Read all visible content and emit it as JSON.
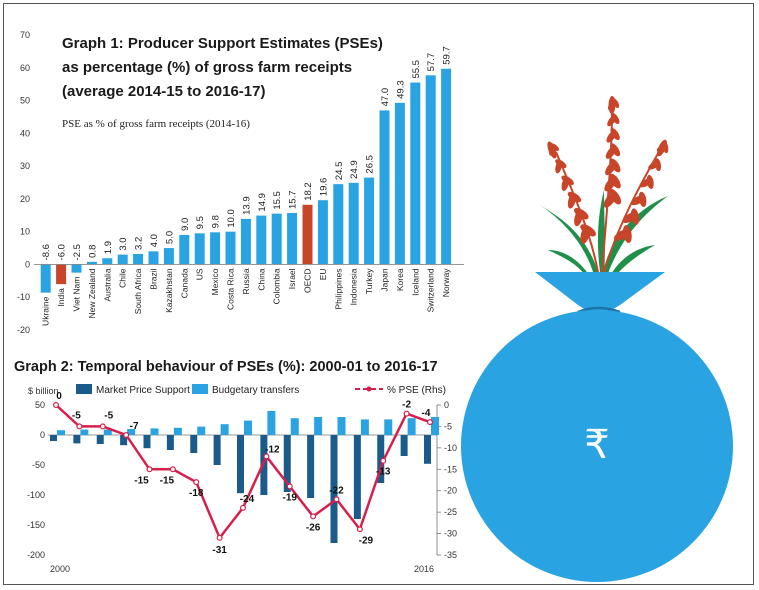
{
  "colors": {
    "light_blue": "#2aa3e2",
    "dark_blue": "#1b5b8c",
    "highlight_red": "#c8452a",
    "pse_line": "#d6204b",
    "bag_blue": "#2aa3e2",
    "wheat": "#c8452a",
    "leaf": "#1f8f4a"
  },
  "chart_data": [
    {
      "type": "bar",
      "title_lines": [
        "Graph 1: Producer Support Estimates (PSEs)",
        "as percentage (%) of gross farm receipts",
        "(average 2014-15 to 2016-17)"
      ],
      "subtitle": "PSE as % of gross farm receipts (2014-16)",
      "categories": [
        "Ukraine",
        "India",
        "Viet Nam",
        "New Zealand",
        "Australia",
        "Chile",
        "South Africa",
        "Brazil",
        "Kazakhstan",
        "Canada",
        "US",
        "Mexico",
        "Costa Rica",
        "Russia",
        "China",
        "Colombia",
        "Israel",
        "OECD",
        "EU",
        "Philippines",
        "Indonesia",
        "Turkey",
        "Japan",
        "Korea",
        "Iceland",
        "Switzerland",
        "Norway"
      ],
      "values": [
        -8.6,
        -6.0,
        -2.5,
        0.8,
        1.9,
        3.0,
        3.2,
        4.0,
        5.0,
        9.0,
        9.5,
        9.8,
        10.0,
        13.9,
        14.9,
        15.5,
        15.7,
        18.2,
        19.6,
        24.5,
        24.9,
        26.5,
        47.0,
        49.3,
        55.5,
        57.7,
        59.7
      ],
      "value_labels": [
        "-8.6",
        "-6.0",
        "-2.5",
        "0.8",
        "1.9",
        "3.0",
        "3.2",
        "4.0",
        "5.0",
        "9.0",
        "9.5",
        "9.8",
        "10.0",
        "13.9",
        "14.9",
        "15.5",
        "15.7",
        "18.2",
        "19.6",
        "24.5",
        "24.9",
        "26.5",
        "47.0",
        "49.3",
        "55.5",
        "57.7",
        "59.7"
      ],
      "highlighted": [
        "India",
        "OECD"
      ],
      "ylim": [
        -20,
        70
      ],
      "yticks": [
        -20,
        -10,
        0,
        10,
        20,
        30,
        40,
        50,
        60,
        70
      ],
      "grid": false
    },
    {
      "type": "bar+line",
      "title": "Graph 2: Temporal behaviour of PSEs (%): 2000-01 to 2016-17",
      "ylabel_left": "$ billion",
      "legend": {
        "placement": "top",
        "items": [
          "Market Price Support",
          "Budgetary transfers",
          "% PSE (Rhs)"
        ]
      },
      "x_start_label": "2000",
      "x_end_label": "2016",
      "n_years": 17,
      "series": [
        {
          "name": "Market Price Support",
          "axis": "left",
          "values": [
            -10,
            -14,
            -15,
            -17,
            -22,
            -25,
            -30,
            -50,
            -97,
            -100,
            -95,
            -105,
            -180,
            -140,
            -80,
            -35,
            -48
          ]
        },
        {
          "name": "Budgetary transfers",
          "axis": "left",
          "values": [
            8,
            9,
            9,
            10,
            11,
            12,
            14,
            18,
            24,
            40,
            28,
            30,
            30,
            26,
            26,
            28,
            30
          ]
        },
        {
          "name": "% PSE (Rhs)",
          "axis": "right",
          "values": [
            0,
            -5,
            -5,
            -7,
            -15,
            -15,
            -18,
            -31,
            -24,
            -12,
            -19,
            -26,
            -22,
            -29,
            -13,
            -2,
            -4
          ]
        }
      ],
      "pse_labels": [
        "0",
        "-5",
        "-5",
        "-7",
        "-15",
        "-15",
        "-18",
        "-31",
        "-24",
        "-12",
        "-19",
        "-26",
        "-22",
        "-29",
        "-13",
        "-2",
        "-4"
      ],
      "ylim_left": [
        -200,
        50
      ],
      "yticks_left": [
        50,
        0,
        -50,
        -100,
        -150,
        -200
      ],
      "ylim_right": [
        -35,
        0
      ],
      "yticks_right": [
        0,
        -5,
        -10,
        -15,
        -20,
        -25,
        -30,
        -35
      ]
    }
  ],
  "illustration": {
    "icon": "rupee-money-bag-with-wheat",
    "symbol": "₹"
  }
}
